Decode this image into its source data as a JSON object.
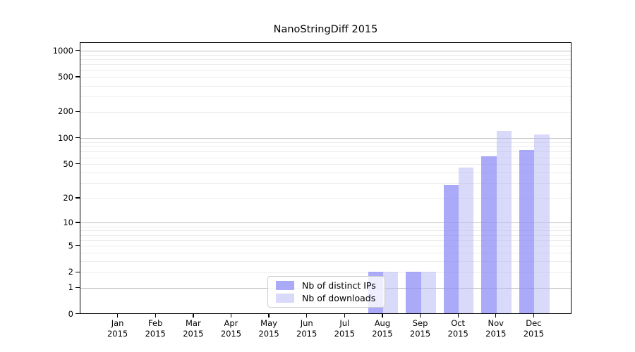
{
  "chart_data": {
    "type": "bar",
    "title": "NanoStringDiff 2015",
    "year": "2015",
    "months": [
      "Jan",
      "Feb",
      "Mar",
      "Apr",
      "May",
      "Jun",
      "Jul",
      "Aug",
      "Sep",
      "Oct",
      "Nov",
      "Dec"
    ],
    "y_ticks": [
      0,
      1,
      2,
      5,
      10,
      20,
      50,
      100,
      200,
      500,
      1000
    ],
    "y_scale": "log10(value+1)",
    "ylim": [
      0,
      1240
    ],
    "grid": "horizontal; major gray lines at 1, 10, 100, 1000; faint minor lines at 2-9 multiples",
    "legend": {
      "position": "lower center"
    },
    "series": [
      {
        "name": "Nb of distinct IPs",
        "color": "#aaaaf8",
        "fill": "rgba(142,142,246,0.75)",
        "values": [
          0,
          0,
          0,
          0,
          0,
          0,
          0,
          2,
          2,
          28,
          60,
          72
        ]
      },
      {
        "name": "Nb of downloads",
        "color": "#d9d9fa",
        "fill": "rgba(186,186,246,0.55)",
        "values": [
          0,
          0,
          0,
          0,
          0,
          0,
          0,
          2,
          2,
          45,
          118,
          107
        ]
      }
    ],
    "colors": {
      "grid_major": "#c0c0c0",
      "grid_minor": "#ececec",
      "axis": "#000000",
      "text": "#000000",
      "background": "#ffffff",
      "legend_border": "#cccccc"
    }
  }
}
